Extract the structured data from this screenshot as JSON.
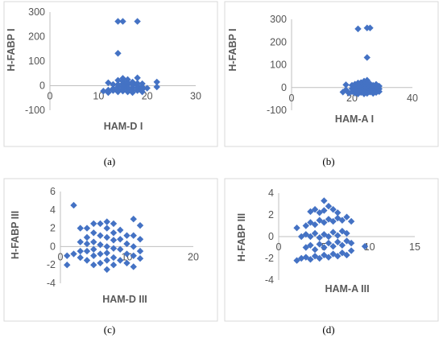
{
  "marker_color": "#4472C4",
  "chart_data": [
    {
      "id": "a",
      "caption": "(a)",
      "type": "scatter",
      "xlabel": "HAM-D I",
      "ylabel": "H-FABP I",
      "xlim": [
        0,
        30
      ],
      "ylim": [
        -100,
        300
      ],
      "xticks": [
        "0",
        "10",
        "20",
        "30"
      ],
      "yticks": [
        "-100",
        "0",
        "100",
        "200",
        "300"
      ],
      "points": [
        [
          14,
          262
        ],
        [
          15,
          262
        ],
        [
          18,
          262
        ],
        [
          14,
          132
        ],
        [
          12,
          12
        ],
        [
          12,
          -18
        ],
        [
          11,
          -22
        ],
        [
          12,
          -28
        ],
        [
          13,
          5
        ],
        [
          13,
          -12
        ],
        [
          13,
          -20
        ],
        [
          14,
          22
        ],
        [
          14,
          5
        ],
        [
          14,
          -5
        ],
        [
          14,
          -18
        ],
        [
          14,
          -25
        ],
        [
          15,
          30
        ],
        [
          15,
          18
        ],
        [
          15,
          8
        ],
        [
          15,
          -2
        ],
        [
          15,
          -12
        ],
        [
          15,
          -22
        ],
        [
          16,
          25
        ],
        [
          16,
          12
        ],
        [
          16,
          4
        ],
        [
          16,
          -6
        ],
        [
          16,
          -15
        ],
        [
          16,
          -25
        ],
        [
          17,
          15
        ],
        [
          17,
          5
        ],
        [
          17,
          -8
        ],
        [
          17,
          -18
        ],
        [
          17,
          -28
        ],
        [
          18,
          32
        ],
        [
          18,
          10
        ],
        [
          18,
          0
        ],
        [
          18,
          -10
        ],
        [
          18,
          -20
        ],
        [
          19,
          8
        ],
        [
          19,
          -5
        ],
        [
          19,
          -15
        ],
        [
          19,
          -25
        ],
        [
          22,
          15
        ],
        [
          22,
          -5
        ],
        [
          20,
          -10
        ]
      ]
    },
    {
      "id": "b",
      "caption": "(b)",
      "type": "scatter",
      "xlabel": "HAM-A I",
      "ylabel": "H-FABP I",
      "xlim": [
        0,
        40
      ],
      "ylim": [
        -100,
        300
      ],
      "xticks": [
        "0",
        "20",
        "40"
      ],
      "yticks": [
        "-100",
        "0",
        "100",
        "200",
        "300"
      ],
      "points": [
        [
          22,
          258
        ],
        [
          25,
          262
        ],
        [
          26,
          262
        ],
        [
          25,
          132
        ],
        [
          18,
          12
        ],
        [
          18,
          -10
        ],
        [
          17,
          -20
        ],
        [
          19,
          -25
        ],
        [
          20,
          10
        ],
        [
          20,
          -5
        ],
        [
          20,
          -18
        ],
        [
          21,
          15
        ],
        [
          21,
          2
        ],
        [
          21,
          -12
        ],
        [
          21,
          -25
        ],
        [
          22,
          20
        ],
        [
          22,
          8
        ],
        [
          22,
          -3
        ],
        [
          22,
          -15
        ],
        [
          22,
          -28
        ],
        [
          23,
          22
        ],
        [
          23,
          10
        ],
        [
          23,
          0
        ],
        [
          23,
          -12
        ],
        [
          23,
          -22
        ],
        [
          24,
          28
        ],
        [
          24,
          14
        ],
        [
          24,
          4
        ],
        [
          24,
          -8
        ],
        [
          24,
          -18
        ],
        [
          24,
          -28
        ],
        [
          25,
          32
        ],
        [
          25,
          18
        ],
        [
          25,
          6
        ],
        [
          25,
          -6
        ],
        [
          25,
          -16
        ],
        [
          25,
          -26
        ],
        [
          26,
          16
        ],
        [
          26,
          4
        ],
        [
          26,
          -10
        ],
        [
          26,
          -20
        ],
        [
          27,
          10
        ],
        [
          27,
          -2
        ],
        [
          27,
          -14
        ],
        [
          27,
          -26
        ],
        [
          28,
          14
        ],
        [
          28,
          2
        ],
        [
          28,
          -10
        ],
        [
          28,
          -22
        ],
        [
          29,
          6
        ],
        [
          29,
          -6
        ],
        [
          29,
          -18
        ]
      ]
    },
    {
      "id": "c",
      "caption": "(c)",
      "type": "scatter",
      "xlabel": "HAM-D III",
      "ylabel": "H-FABP III",
      "xlim": [
        0,
        20
      ],
      "ylim": [
        -4,
        6
      ],
      "xticks": [
        "0",
        "10",
        "20"
      ],
      "yticks": [
        "-4",
        "-2",
        "0",
        "2",
        "4",
        "6"
      ],
      "points": [
        [
          2,
          4.5
        ],
        [
          1,
          -1
        ],
        [
          1,
          -2
        ],
        [
          2,
          -0.8
        ],
        [
          3,
          2
        ],
        [
          3,
          0.5
        ],
        [
          3,
          -0.5
        ],
        [
          3,
          -1.2
        ],
        [
          4,
          1
        ],
        [
          4,
          0.3
        ],
        [
          4,
          -0.5
        ],
        [
          4,
          -1.5
        ],
        [
          4,
          2
        ],
        [
          5,
          2.5
        ],
        [
          5,
          1.5
        ],
        [
          5,
          0.5
        ],
        [
          5,
          -0.3
        ],
        [
          5,
          -1
        ],
        [
          5,
          -2
        ],
        [
          6,
          2.5
        ],
        [
          6,
          1.2
        ],
        [
          6,
          0.2
        ],
        [
          6,
          -0.8
        ],
        [
          6,
          -1.8
        ],
        [
          7,
          2.7
        ],
        [
          7,
          2
        ],
        [
          7,
          1
        ],
        [
          7,
          0
        ],
        [
          7,
          -0.7
        ],
        [
          7,
          -1.5
        ],
        [
          7,
          -2.5
        ],
        [
          8,
          2.5
        ],
        [
          8,
          1.5
        ],
        [
          8,
          0.7
        ],
        [
          8,
          -0.2
        ],
        [
          8,
          -1.2
        ],
        [
          8,
          -2
        ],
        [
          9,
          1.8
        ],
        [
          9,
          0.8
        ],
        [
          9,
          -0.3
        ],
        [
          9,
          -1.5
        ],
        [
          10,
          1.2
        ],
        [
          10,
          0.3
        ],
        [
          10,
          -0.8
        ],
        [
          10,
          -1.8
        ],
        [
          11,
          3
        ],
        [
          11,
          1.2
        ],
        [
          11,
          0
        ],
        [
          11,
          -1
        ],
        [
          11,
          -2.2
        ],
        [
          12,
          2.3
        ],
        [
          12,
          0.8
        ],
        [
          12,
          -0.5
        ],
        [
          12,
          -1.3
        ]
      ]
    },
    {
      "id": "d",
      "caption": "(d)",
      "type": "scatter",
      "xlabel": "HAM-A III",
      "ylabel": "H-FABP III",
      "xlim": [
        0,
        15
      ],
      "ylim": [
        -4,
        4
      ],
      "xticks": [
        "0",
        "5",
        "10",
        "15"
      ],
      "yticks": [
        "-4",
        "-2",
        "0",
        "2",
        "4"
      ],
      "points": [
        [
          5,
          3.3
        ],
        [
          5.5,
          2.8
        ],
        [
          3.5,
          2.3
        ],
        [
          4,
          2.5
        ],
        [
          4.5,
          2.2
        ],
        [
          5,
          2.4
        ],
        [
          6,
          2.5
        ],
        [
          6.5,
          2.2
        ],
        [
          2,
          0.8
        ],
        [
          3,
          1
        ],
        [
          3.5,
          1.3
        ],
        [
          4,
          1.1
        ],
        [
          4.5,
          1.5
        ],
        [
          5,
          1.3
        ],
        [
          5.5,
          1.6
        ],
        [
          6,
          1.4
        ],
        [
          6.5,
          1.7
        ],
        [
          7,
          1.5
        ],
        [
          7.5,
          1.8
        ],
        [
          8,
          1.4
        ],
        [
          2.5,
          0
        ],
        [
          3,
          0.2
        ],
        [
          3.5,
          0
        ],
        [
          4,
          0.3
        ],
        [
          4.5,
          -0.1
        ],
        [
          5,
          0.2
        ],
        [
          5.5,
          0
        ],
        [
          6,
          0.4
        ],
        [
          6.5,
          0.1
        ],
        [
          7,
          0.5
        ],
        [
          7.5,
          0.3
        ],
        [
          3,
          -1
        ],
        [
          3.5,
          -0.8
        ],
        [
          4,
          -1.2
        ],
        [
          4.5,
          -0.7
        ],
        [
          5,
          -1
        ],
        [
          5.5,
          -0.6
        ],
        [
          6,
          -0.9
        ],
        [
          6.5,
          -0.5
        ],
        [
          7,
          -0.8
        ],
        [
          7.5,
          -0.4
        ],
        [
          8,
          -0.6
        ],
        [
          2,
          -2.2
        ],
        [
          2.5,
          -2
        ],
        [
          3,
          -1.9
        ],
        [
          3.5,
          -2.1
        ],
        [
          4,
          -1.8
        ],
        [
          4.5,
          -2
        ],
        [
          5,
          -1.7
        ],
        [
          5.5,
          -1.9
        ],
        [
          6,
          -1.6
        ],
        [
          6.5,
          -1.8
        ],
        [
          7,
          -1.5
        ],
        [
          7.5,
          -1.7
        ],
        [
          8,
          -1.3
        ],
        [
          9.5,
          -0.9
        ]
      ]
    }
  ]
}
